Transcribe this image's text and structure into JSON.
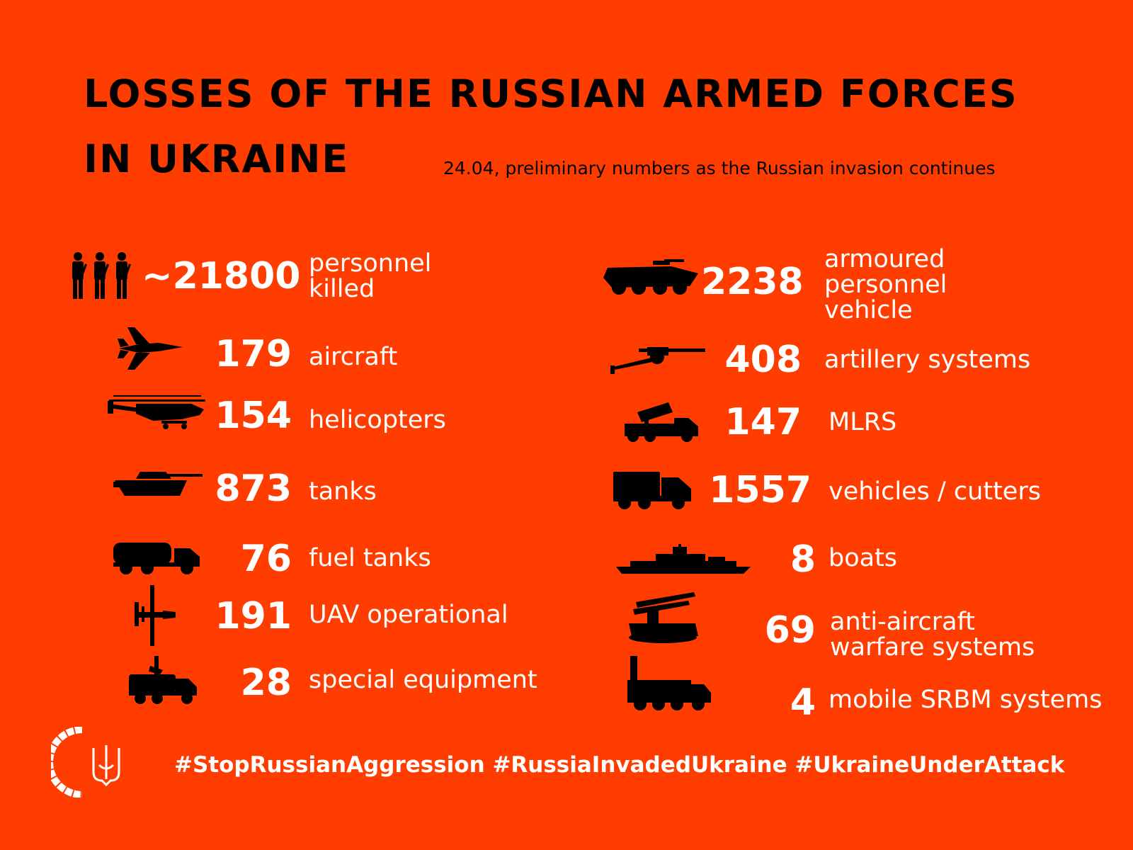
{
  "header": {
    "title_line1": "LOSSES OF THE RUSSIAN ARMED FORCES",
    "title_line2": "IN UKRAINE",
    "subtitle": "24.04, preliminary numbers as the Russian invasion continues"
  },
  "left": [
    {
      "icon": "soldiers-icon",
      "value": "~21800",
      "label_lines": [
        "personnel",
        "killed"
      ]
    },
    {
      "icon": "aircraft-icon",
      "value": "179",
      "label_lines": [
        "aircraft"
      ]
    },
    {
      "icon": "helicopter-icon",
      "value": "154",
      "label_lines": [
        "helicopters"
      ]
    },
    {
      "icon": "tank-icon",
      "value": "873",
      "label_lines": [
        "tanks"
      ]
    },
    {
      "icon": "fuel-truck-icon",
      "value": "76",
      "label_lines": [
        "fuel tanks"
      ]
    },
    {
      "icon": "uav-icon",
      "value": "191",
      "label_lines": [
        "UAV operational"
      ]
    },
    {
      "icon": "special-equipment-icon",
      "value": "28",
      "label_lines": [
        "special equipment"
      ]
    }
  ],
  "right": [
    {
      "icon": "apc-icon",
      "value": "2238",
      "label_lines": [
        "armoured",
        "personnel",
        "vehicle"
      ]
    },
    {
      "icon": "artillery-icon",
      "value": "408",
      "label_lines": [
        "artillery systems"
      ]
    },
    {
      "icon": "mlrs-icon",
      "value": "147",
      "label_lines": [
        "MLRS"
      ]
    },
    {
      "icon": "truck-icon",
      "value": "1557",
      "label_lines": [
        "vehicles / cutters"
      ]
    },
    {
      "icon": "boat-icon",
      "value": "8",
      "label_lines": [
        "boats"
      ]
    },
    {
      "icon": "anti-aircraft-icon",
      "value": "69",
      "label_lines": [
        "anti-aircraft",
        "warfare systems"
      ]
    },
    {
      "icon": "srbm-launcher-icon",
      "value": "4",
      "label_lines": [
        "mobile SRBM systems"
      ]
    }
  ],
  "footer": {
    "hashtags": "#StopRussianAggression #RussiaInvadedUkraine #UkraineUnderAttack"
  },
  "colors": {
    "background": "#ff3d00",
    "title": "#000000",
    "text": "#ffffff",
    "icons": "#000000"
  }
}
